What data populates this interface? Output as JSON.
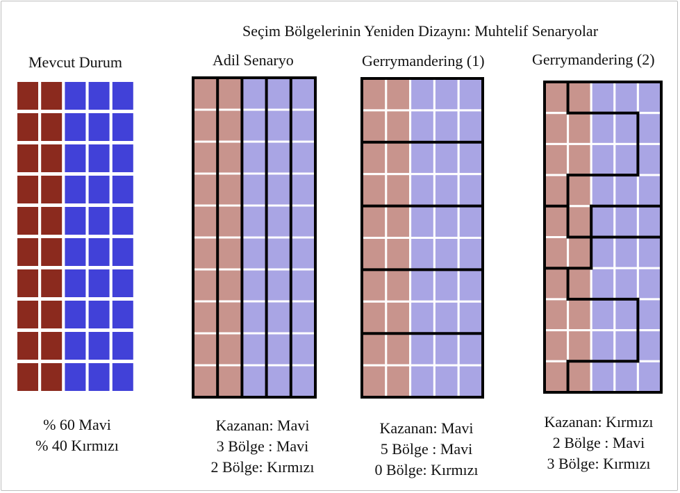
{
  "title": "Seçim Bölgelerinin Yeniden Dizaynı: Muhtelif Senaryolar",
  "colors": {
    "red_strong": "#8b2a1e",
    "blue_strong": "#4141d8",
    "red_light": "#c8948d",
    "blue_light": "#a9a5e4",
    "border": "#000000"
  },
  "grid": {
    "rows": 10,
    "cols": 5,
    "red_cols": 2,
    "blue_cols": 3
  },
  "panels": [
    {
      "label": "Mevcut Durum",
      "caption_lines": [
        "% 60 Mavi",
        "% 40 Kırmızı"
      ]
    },
    {
      "label": "Adil Senaryo",
      "caption_lines": [
        "Kazanan: Mavi",
        "3 Bölge : Mavi",
        "2 Bölge: Kırmızı"
      ],
      "districts": "5 vertical column districts"
    },
    {
      "label": "Gerrymandering  (1)",
      "caption_lines": [
        "Kazanan: Mavi",
        "5 Bölge : Mavi",
        "0 Bölge: Kırmızı"
      ],
      "districts": "5 horizontal 2-row districts"
    },
    {
      "label": "Gerrymandering  (2)",
      "caption_lines": [
        "Kazanan: Kırmızı",
        "2 Bölge : Mavi",
        "3 Bölge: Kırmızı"
      ],
      "districts": "5 interlocking districts"
    }
  ]
}
